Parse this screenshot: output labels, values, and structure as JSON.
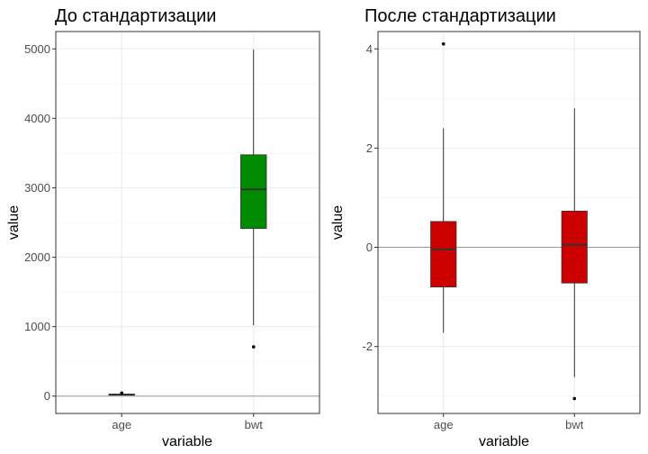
{
  "chart_data": [
    {
      "type": "boxplot",
      "title": "До стандартизации",
      "xlabel": "variable",
      "ylabel": "value",
      "categories": [
        "age",
        "bwt"
      ],
      "ylim": [
        -250,
        5250
      ],
      "yticks": [
        0,
        1000,
        2000,
        3000,
        4000,
        5000
      ],
      "hline": 0,
      "grid": true,
      "boxes": [
        {
          "category": "age",
          "min": 14,
          "q1": 19,
          "median": 23,
          "q3": 26,
          "max": 36,
          "outliers": [
            45
          ],
          "color": "#008B00"
        },
        {
          "category": "bwt",
          "min": 1021,
          "q1": 2414,
          "median": 2977,
          "q3": 3475,
          "max": 4990,
          "outliers": [
            709
          ],
          "color": "#008B00"
        }
      ]
    },
    {
      "type": "boxplot",
      "title": "После стандартизации",
      "xlabel": "variable",
      "ylabel": "value",
      "categories": [
        "age",
        "bwt"
      ],
      "ylim": [
        -3.35,
        4.35
      ],
      "yticks": [
        -2,
        0,
        2,
        4
      ],
      "hline": 0,
      "grid": true,
      "boxes": [
        {
          "category": "age",
          "min": -1.72,
          "q1": -0.8,
          "median": -0.04,
          "q3": 0.52,
          "max": 2.4,
          "outliers": [
            4.1
          ],
          "color": "#CD0000"
        },
        {
          "category": "bwt",
          "min": -2.62,
          "q1": -0.72,
          "median": 0.05,
          "q3": 0.73,
          "max": 2.8,
          "outliers": [
            -3.05
          ],
          "color": "#CD0000"
        }
      ]
    }
  ]
}
